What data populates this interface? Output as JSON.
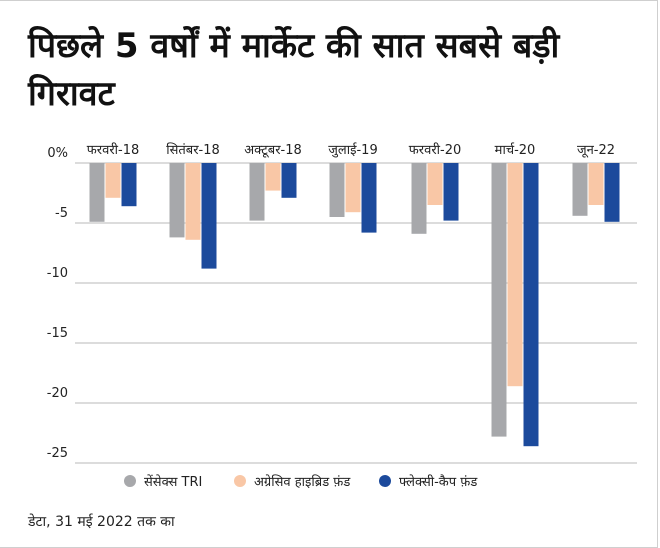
{
  "title": "पिछले 5 वर्षों में मार्केट की सात सबसे बड़ी गिरावट",
  "note": "डेटा, 31 मई 2022 तक का",
  "chart_data": {
    "type": "bar",
    "categories": [
      "फरवरी-18",
      "सितंबर-18",
      "अक्टूबर-18",
      "जुलाई-19",
      "फरवरी-20",
      "मार्च-20",
      "जून-22"
    ],
    "series": [
      {
        "name": "सेंसेक्स TRI",
        "color": "#a7a8ab",
        "values": [
          -4.9,
          -6.2,
          -4.8,
          -4.5,
          -5.9,
          -22.8,
          -4.4
        ]
      },
      {
        "name": "अग्रेसिव हाइब्रिड फ़ंड",
        "color": "#f9c7a6",
        "values": [
          -2.9,
          -6.4,
          -2.3,
          -4.1,
          -3.5,
          -18.6,
          -3.5
        ]
      },
      {
        "name": "फ्लेक्सी-कैप फ़ंड",
        "color": "#1c4a9c",
        "values": [
          -3.6,
          -8.8,
          -2.9,
          -5.8,
          -4.8,
          -23.6,
          -4.9
        ]
      }
    ],
    "yticks": [
      "0%",
      "-5",
      "-10",
      "-15",
      "-20",
      "-25"
    ],
    "ytick_values": [
      0,
      -5,
      -10,
      -15,
      -20,
      -25
    ],
    "ylim": [
      -25,
      0
    ],
    "grid": true,
    "legend": "bottom"
  }
}
